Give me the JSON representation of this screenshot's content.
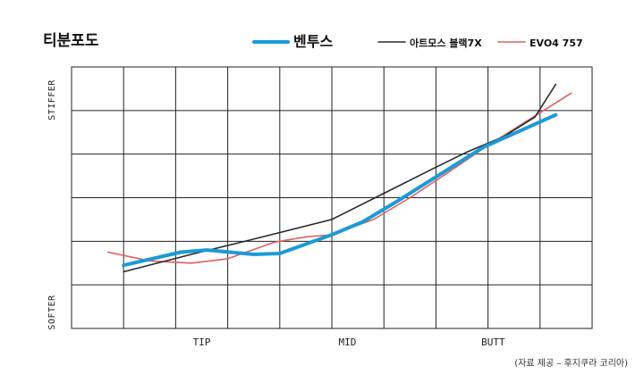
{
  "chart_data": {
    "type": "line",
    "title": "티분포도",
    "ylabel_top": "STIFFER",
    "ylabel_bottom": "SOFTER",
    "xlim": [
      0,
      10
    ],
    "ylim": [
      0,
      6
    ],
    "grid": true,
    "x_ticks": [
      {
        "x": 2.5,
        "label": "TIP"
      },
      {
        "x": 5.3,
        "label": "MID"
      },
      {
        "x": 8.1,
        "label": "BUTT"
      }
    ],
    "series": [
      {
        "name": "벤투스",
        "color": "#1a9bd7",
        "style": "thick",
        "x": [
          1.0,
          2.1,
          2.6,
          3.5,
          4.0,
          5.0,
          5.6,
          6.3,
          7.1,
          7.9,
          9.3
        ],
        "y": [
          1.45,
          1.75,
          1.8,
          1.7,
          1.72,
          2.15,
          2.45,
          2.95,
          3.55,
          4.15,
          4.9
        ]
      },
      {
        "name": "아트모스 블랙7X",
        "color": "#2a2a2a",
        "style": "thin",
        "x": [
          1.0,
          2.3,
          3.5,
          5.0,
          6.0,
          7.0,
          7.6,
          8.3,
          8.9,
          9.3
        ],
        "y": [
          1.3,
          1.7,
          2.05,
          2.5,
          3.1,
          3.7,
          4.05,
          4.4,
          4.85,
          5.6
        ]
      },
      {
        "name": "EVO4 757",
        "color": "#e06060",
        "style": "thin",
        "x": [
          0.7,
          1.5,
          2.3,
          3.0,
          3.9,
          4.5,
          5.0,
          5.8,
          6.5,
          7.2,
          8.0,
          8.8,
          9.6
        ],
        "y": [
          1.75,
          1.55,
          1.5,
          1.6,
          1.98,
          2.1,
          2.15,
          2.5,
          3.0,
          3.55,
          4.2,
          4.8,
          5.4
        ]
      }
    ]
  },
  "source_note": "(자료 제공 – 후지쿠라 코리아)"
}
